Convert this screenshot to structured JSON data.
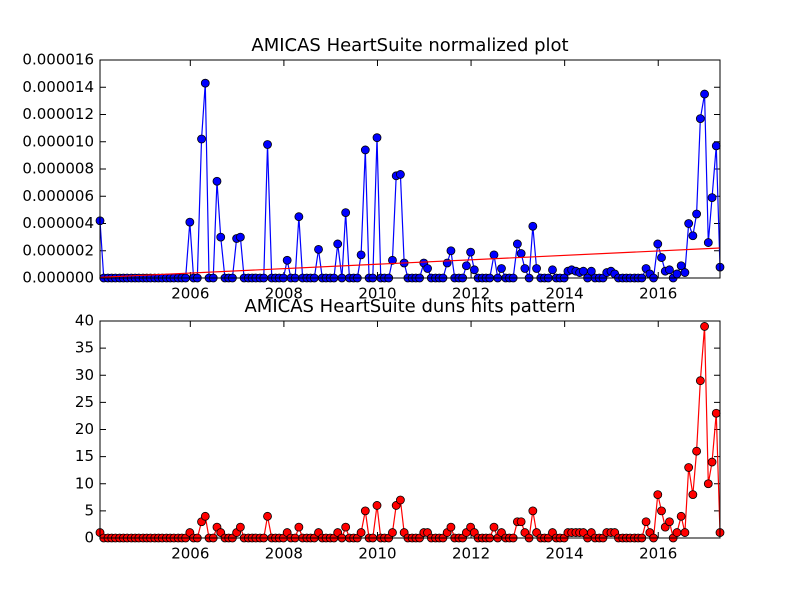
{
  "chart_data": [
    {
      "type": "line",
      "title": "AMICAS HeartSuite normalized plot",
      "color": "#0000ff",
      "marker_edge": "#000000",
      "x": [
        2004.07,
        2004.15,
        2004.24,
        2004.32,
        2004.4,
        2004.49,
        2004.57,
        2004.65,
        2004.74,
        2004.82,
        2004.9,
        2004.99,
        2005.07,
        2005.15,
        2005.24,
        2005.32,
        2005.4,
        2005.49,
        2005.57,
        2005.65,
        2005.74,
        2005.82,
        2005.9,
        2005.99,
        2006.07,
        2006.15,
        2006.24,
        2006.32,
        2006.4,
        2006.49,
        2006.57,
        2006.65,
        2006.74,
        2006.82,
        2006.9,
        2006.99,
        2007.07,
        2007.15,
        2007.24,
        2007.32,
        2007.4,
        2007.49,
        2007.57,
        2007.65,
        2007.74,
        2007.82,
        2007.9,
        2007.99,
        2008.07,
        2008.15,
        2008.24,
        2008.32,
        2008.4,
        2008.49,
        2008.57,
        2008.65,
        2008.74,
        2008.82,
        2008.9,
        2008.99,
        2009.07,
        2009.15,
        2009.24,
        2009.32,
        2009.4,
        2009.49,
        2009.57,
        2009.65,
        2009.74,
        2009.82,
        2009.9,
        2009.99,
        2010.07,
        2010.15,
        2010.24,
        2010.32,
        2010.4,
        2010.49,
        2010.57,
        2010.65,
        2010.74,
        2010.82,
        2010.9,
        2010.99,
        2011.07,
        2011.15,
        2011.24,
        2011.32,
        2011.4,
        2011.49,
        2011.57,
        2011.65,
        2011.74,
        2011.82,
        2011.9,
        2011.99,
        2012.07,
        2012.15,
        2012.24,
        2012.32,
        2012.4,
        2012.49,
        2012.57,
        2012.65,
        2012.74,
        2012.82,
        2012.9,
        2012.99,
        2013.07,
        2013.15,
        2013.24,
        2013.32,
        2013.4,
        2013.49,
        2013.57,
        2013.65,
        2013.74,
        2013.82,
        2013.9,
        2013.99,
        2014.07,
        2014.15,
        2014.24,
        2014.32,
        2014.4,
        2014.49,
        2014.57,
        2014.65,
        2014.74,
        2014.82,
        2014.9,
        2014.99,
        2015.07,
        2015.15,
        2015.24,
        2015.32,
        2015.4,
        2015.49,
        2015.57,
        2015.65,
        2015.74,
        2015.82,
        2015.9,
        2015.99,
        2016.07,
        2016.15,
        2016.24,
        2016.32,
        2016.4,
        2016.49,
        2016.57,
        2016.65,
        2016.74,
        2016.82,
        2016.9,
        2016.99,
        2017.07,
        2017.15,
        2017.24,
        2017.32
      ],
      "values": [
        4.2e-06,
        0,
        0,
        0,
        0,
        0,
        0,
        0,
        0,
        0,
        0,
        0,
        0,
        0,
        0,
        0,
        0,
        0,
        0,
        0,
        0,
        0,
        0,
        4.1e-06,
        0,
        0,
        1.02e-05,
        1.43e-05,
        0,
        0,
        7.1e-06,
        3e-06,
        0,
        0,
        0,
        2.9e-06,
        3e-06,
        0,
        0,
        0,
        0,
        0,
        0,
        9.8e-06,
        0,
        0,
        0,
        0,
        1.3e-06,
        0,
        0,
        4.5e-06,
        0,
        0,
        0,
        0,
        2.1e-06,
        0,
        0,
        0,
        0,
        2.5e-06,
        0,
        4.8e-06,
        0,
        0,
        0,
        1.7e-06,
        9.4e-06,
        0,
        0,
        1.03e-05,
        0,
        0,
        0,
        1.3e-06,
        7.5e-06,
        7.6e-06,
        1.1e-06,
        0,
        0,
        0,
        0,
        1.1e-06,
        7e-07,
        0,
        0,
        0,
        0,
        1.1e-06,
        2e-06,
        0,
        0,
        0,
        9e-07,
        1.9e-06,
        6e-07,
        0,
        0,
        0,
        0,
        1.7e-06,
        0,
        7e-07,
        0,
        0,
        0,
        2.5e-06,
        1.8e-06,
        7e-07,
        0,
        3.8e-06,
        7e-07,
        0,
        0,
        0,
        6e-07,
        0,
        0,
        0,
        5e-07,
        6e-07,
        5e-07,
        4e-07,
        5e-07,
        0,
        5e-07,
        0,
        0,
        0,
        4e-07,
        5e-07,
        3e-07,
        0,
        0,
        0,
        0,
        0,
        0,
        0,
        7e-07,
        3e-07,
        0,
        2.5e-06,
        1.5e-06,
        5e-07,
        6e-07,
        0,
        3e-07,
        9e-07,
        4e-07,
        4e-06,
        3.1e-06,
        4.7e-06,
        1.17e-05,
        1.35e-05,
        2.6e-06,
        5.9e-06,
        9.7e-06,
        8e-07
      ],
      "fit_line": {
        "color": "#ff0000",
        "x": [
          2004.07,
          2017.32
        ],
        "values": [
          5e-08,
          2.2e-06
        ]
      },
      "xlim": [
        2004.07,
        2017.32
      ],
      "xticks": [
        2006,
        2008,
        2010,
        2012,
        2014,
        2016
      ],
      "ylim": [
        0,
        1.6e-05
      ],
      "yticks": [
        {
          "value": 0,
          "label": "0.000000"
        },
        {
          "value": 2e-06,
          "label": "0.000002"
        },
        {
          "value": 4e-06,
          "label": "0.000004"
        },
        {
          "value": 6e-06,
          "label": "0.000006"
        },
        {
          "value": 8e-06,
          "label": "0.000008"
        },
        {
          "value": 1e-05,
          "label": "0.000010"
        },
        {
          "value": 1.2e-05,
          "label": "0.000012"
        },
        {
          "value": 1.4e-05,
          "label": "0.000014"
        },
        {
          "value": 1.6e-05,
          "label": "0.000016"
        }
      ]
    },
    {
      "type": "line",
      "title": "AMICAS HeartSuite duns hits pattern",
      "color": "#ff0000",
      "marker_edge": "#000000",
      "x": [
        2004.07,
        2004.15,
        2004.24,
        2004.32,
        2004.4,
        2004.49,
        2004.57,
        2004.65,
        2004.74,
        2004.82,
        2004.9,
        2004.99,
        2005.07,
        2005.15,
        2005.24,
        2005.32,
        2005.4,
        2005.49,
        2005.57,
        2005.65,
        2005.74,
        2005.82,
        2005.9,
        2005.99,
        2006.07,
        2006.15,
        2006.24,
        2006.32,
        2006.4,
        2006.49,
        2006.57,
        2006.65,
        2006.74,
        2006.82,
        2006.9,
        2006.99,
        2007.07,
        2007.15,
        2007.24,
        2007.32,
        2007.4,
        2007.49,
        2007.57,
        2007.65,
        2007.74,
        2007.82,
        2007.9,
        2007.99,
        2008.07,
        2008.15,
        2008.24,
        2008.32,
        2008.4,
        2008.49,
        2008.57,
        2008.65,
        2008.74,
        2008.82,
        2008.9,
        2008.99,
        2009.07,
        2009.15,
        2009.24,
        2009.32,
        2009.4,
        2009.49,
        2009.57,
        2009.65,
        2009.74,
        2009.82,
        2009.9,
        2009.99,
        2010.07,
        2010.15,
        2010.24,
        2010.32,
        2010.4,
        2010.49,
        2010.57,
        2010.65,
        2010.74,
        2010.82,
        2010.9,
        2010.99,
        2011.07,
        2011.15,
        2011.24,
        2011.32,
        2011.4,
        2011.49,
        2011.57,
        2011.65,
        2011.74,
        2011.82,
        2011.9,
        2011.99,
        2012.07,
        2012.15,
        2012.24,
        2012.32,
        2012.4,
        2012.49,
        2012.57,
        2012.65,
        2012.74,
        2012.82,
        2012.9,
        2012.99,
        2013.07,
        2013.15,
        2013.24,
        2013.32,
        2013.4,
        2013.49,
        2013.57,
        2013.65,
        2013.74,
        2013.82,
        2013.9,
        2013.99,
        2014.07,
        2014.15,
        2014.24,
        2014.32,
        2014.4,
        2014.49,
        2014.57,
        2014.65,
        2014.74,
        2014.82,
        2014.9,
        2014.99,
        2015.07,
        2015.15,
        2015.24,
        2015.32,
        2015.4,
        2015.49,
        2015.57,
        2015.65,
        2015.74,
        2015.82,
        2015.9,
        2015.99,
        2016.07,
        2016.15,
        2016.24,
        2016.32,
        2016.4,
        2016.49,
        2016.57,
        2016.65,
        2016.74,
        2016.82,
        2016.9,
        2016.99,
        2017.07,
        2017.15,
        2017.24,
        2017.32
      ],
      "values": [
        1,
        0,
        0,
        0,
        0,
        0,
        0,
        0,
        0,
        0,
        0,
        0,
        0,
        0,
        0,
        0,
        0,
        0,
        0,
        0,
        0,
        0,
        0,
        1,
        0,
        0,
        3,
        4,
        0,
        0,
        2,
        1,
        0,
        0,
        0,
        1,
        2,
        0,
        0,
        0,
        0,
        0,
        0,
        4,
        0,
        0,
        0,
        0,
        1,
        0,
        0,
        2,
        0,
        0,
        0,
        0,
        1,
        0,
        0,
        0,
        0,
        1,
        0,
        2,
        0,
        0,
        0,
        1,
        5,
        0,
        0,
        6,
        0,
        0,
        0,
        1,
        6,
        7,
        1,
        0,
        0,
        0,
        0,
        1,
        1,
        0,
        0,
        0,
        0,
        1,
        2,
        0,
        0,
        0,
        1,
        2,
        1,
        0,
        0,
        0,
        0,
        2,
        0,
        1,
        0,
        0,
        0,
        3,
        3,
        1,
        0,
        5,
        1,
        0,
        0,
        0,
        1,
        0,
        0,
        0,
        1,
        1,
        1,
        1,
        1,
        0,
        1,
        0,
        0,
        0,
        1,
        1,
        1,
        0,
        0,
        0,
        0,
        0,
        0,
        0,
        3,
        1,
        0,
        8,
        5,
        2,
        3,
        0,
        1,
        4,
        1,
        13,
        8,
        16,
        29,
        39,
        10,
        14,
        23,
        1
      ],
      "xlim": [
        2004.07,
        2017.32
      ],
      "xticks": [
        2006,
        2008,
        2010,
        2012,
        2014,
        2016
      ],
      "ylim": [
        0,
        40
      ],
      "yticks": [
        0,
        5,
        10,
        15,
        20,
        25,
        30,
        35,
        40
      ]
    }
  ]
}
